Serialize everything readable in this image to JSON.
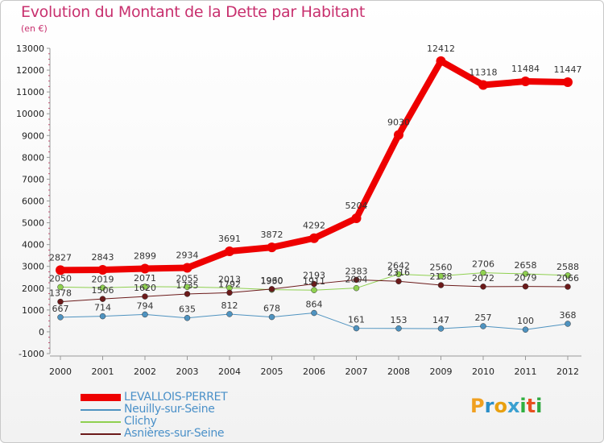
{
  "header": {
    "title": "Evolution du Montant de la Dette par Habitant",
    "subtitle": "(en €)"
  },
  "logo": {
    "text": "Proxiti",
    "letters": [
      "P",
      "r",
      "o",
      "x",
      "i",
      "t",
      "i"
    ],
    "colors": [
      "#f0a020",
      "#2a8ec8",
      "#e8a010",
      "#3aa0d0",
      "#30b040",
      "#e85020",
      "#30a840"
    ]
  },
  "chart_data": {
    "type": "line",
    "title": "Evolution du Montant de la Dette par Habitant",
    "subtitle": "(en €)",
    "categories": [
      "2000",
      "2001",
      "2002",
      "2003",
      "2004",
      "2005",
      "2006",
      "2007",
      "2008",
      "2009",
      "2010",
      "2011",
      "2012"
    ],
    "y_ticks": [
      -1000,
      0,
      1000,
      2000,
      3000,
      4000,
      5000,
      6000,
      7000,
      8000,
      9000,
      10000,
      11000,
      12000,
      13000
    ],
    "ylim": [
      -1000,
      13000
    ],
    "grid": false,
    "legend_position": "bottom-left",
    "series": [
      {
        "name": "LEVALLOIS-PERRET",
        "color": "#ee0000",
        "values": [
          2827,
          2843,
          2899,
          2934,
          3691,
          3872,
          4292,
          5204,
          9030,
          12412,
          11318,
          11484,
          11447
        ],
        "labels": [
          "2827",
          "2843",
          "2899",
          "2934",
          "3691",
          "3872",
          "4292",
          "5204",
          "9030",
          "12412",
          "11318",
          "11484",
          "11447"
        ]
      },
      {
        "name": "Neuilly-sur-Seine",
        "color": "#4f93c0",
        "values": [
          667,
          714,
          794,
          635,
          812,
          678,
          864,
          161,
          153,
          147,
          257,
          100,
          368
        ],
        "labels": [
          "667",
          "714",
          "794",
          "635",
          "812",
          "678",
          "864",
          "161",
          "153",
          "147",
          "257",
          "100",
          "368"
        ]
      },
      {
        "name": "Clichy",
        "color": "#8fd050",
        "values": [
          2050,
          2019,
          2071,
          2055,
          2013,
          1930,
          1911,
          2004,
          2642,
          2560,
          2706,
          2658,
          2588
        ],
        "labels": [
          "2050",
          "2019",
          "2071",
          "2055",
          "2013",
          "1930",
          "1911",
          "2004",
          "2642",
          "2560",
          "2706",
          "2658",
          "2588"
        ]
      },
      {
        "name": "Asnières-sur-Seine",
        "color": "#6b1a1a",
        "values": [
          1378,
          1506,
          1620,
          1735,
          1792,
          1960,
          2193,
          2383,
          2316,
          2138,
          2072,
          2079,
          2066
        ],
        "labels": [
          "1378",
          "1506",
          "1620",
          "1735",
          "1792",
          "1960",
          "2193",
          "2383",
          "2316",
          "2138",
          "2072",
          "2079",
          "2066"
        ]
      }
    ]
  }
}
